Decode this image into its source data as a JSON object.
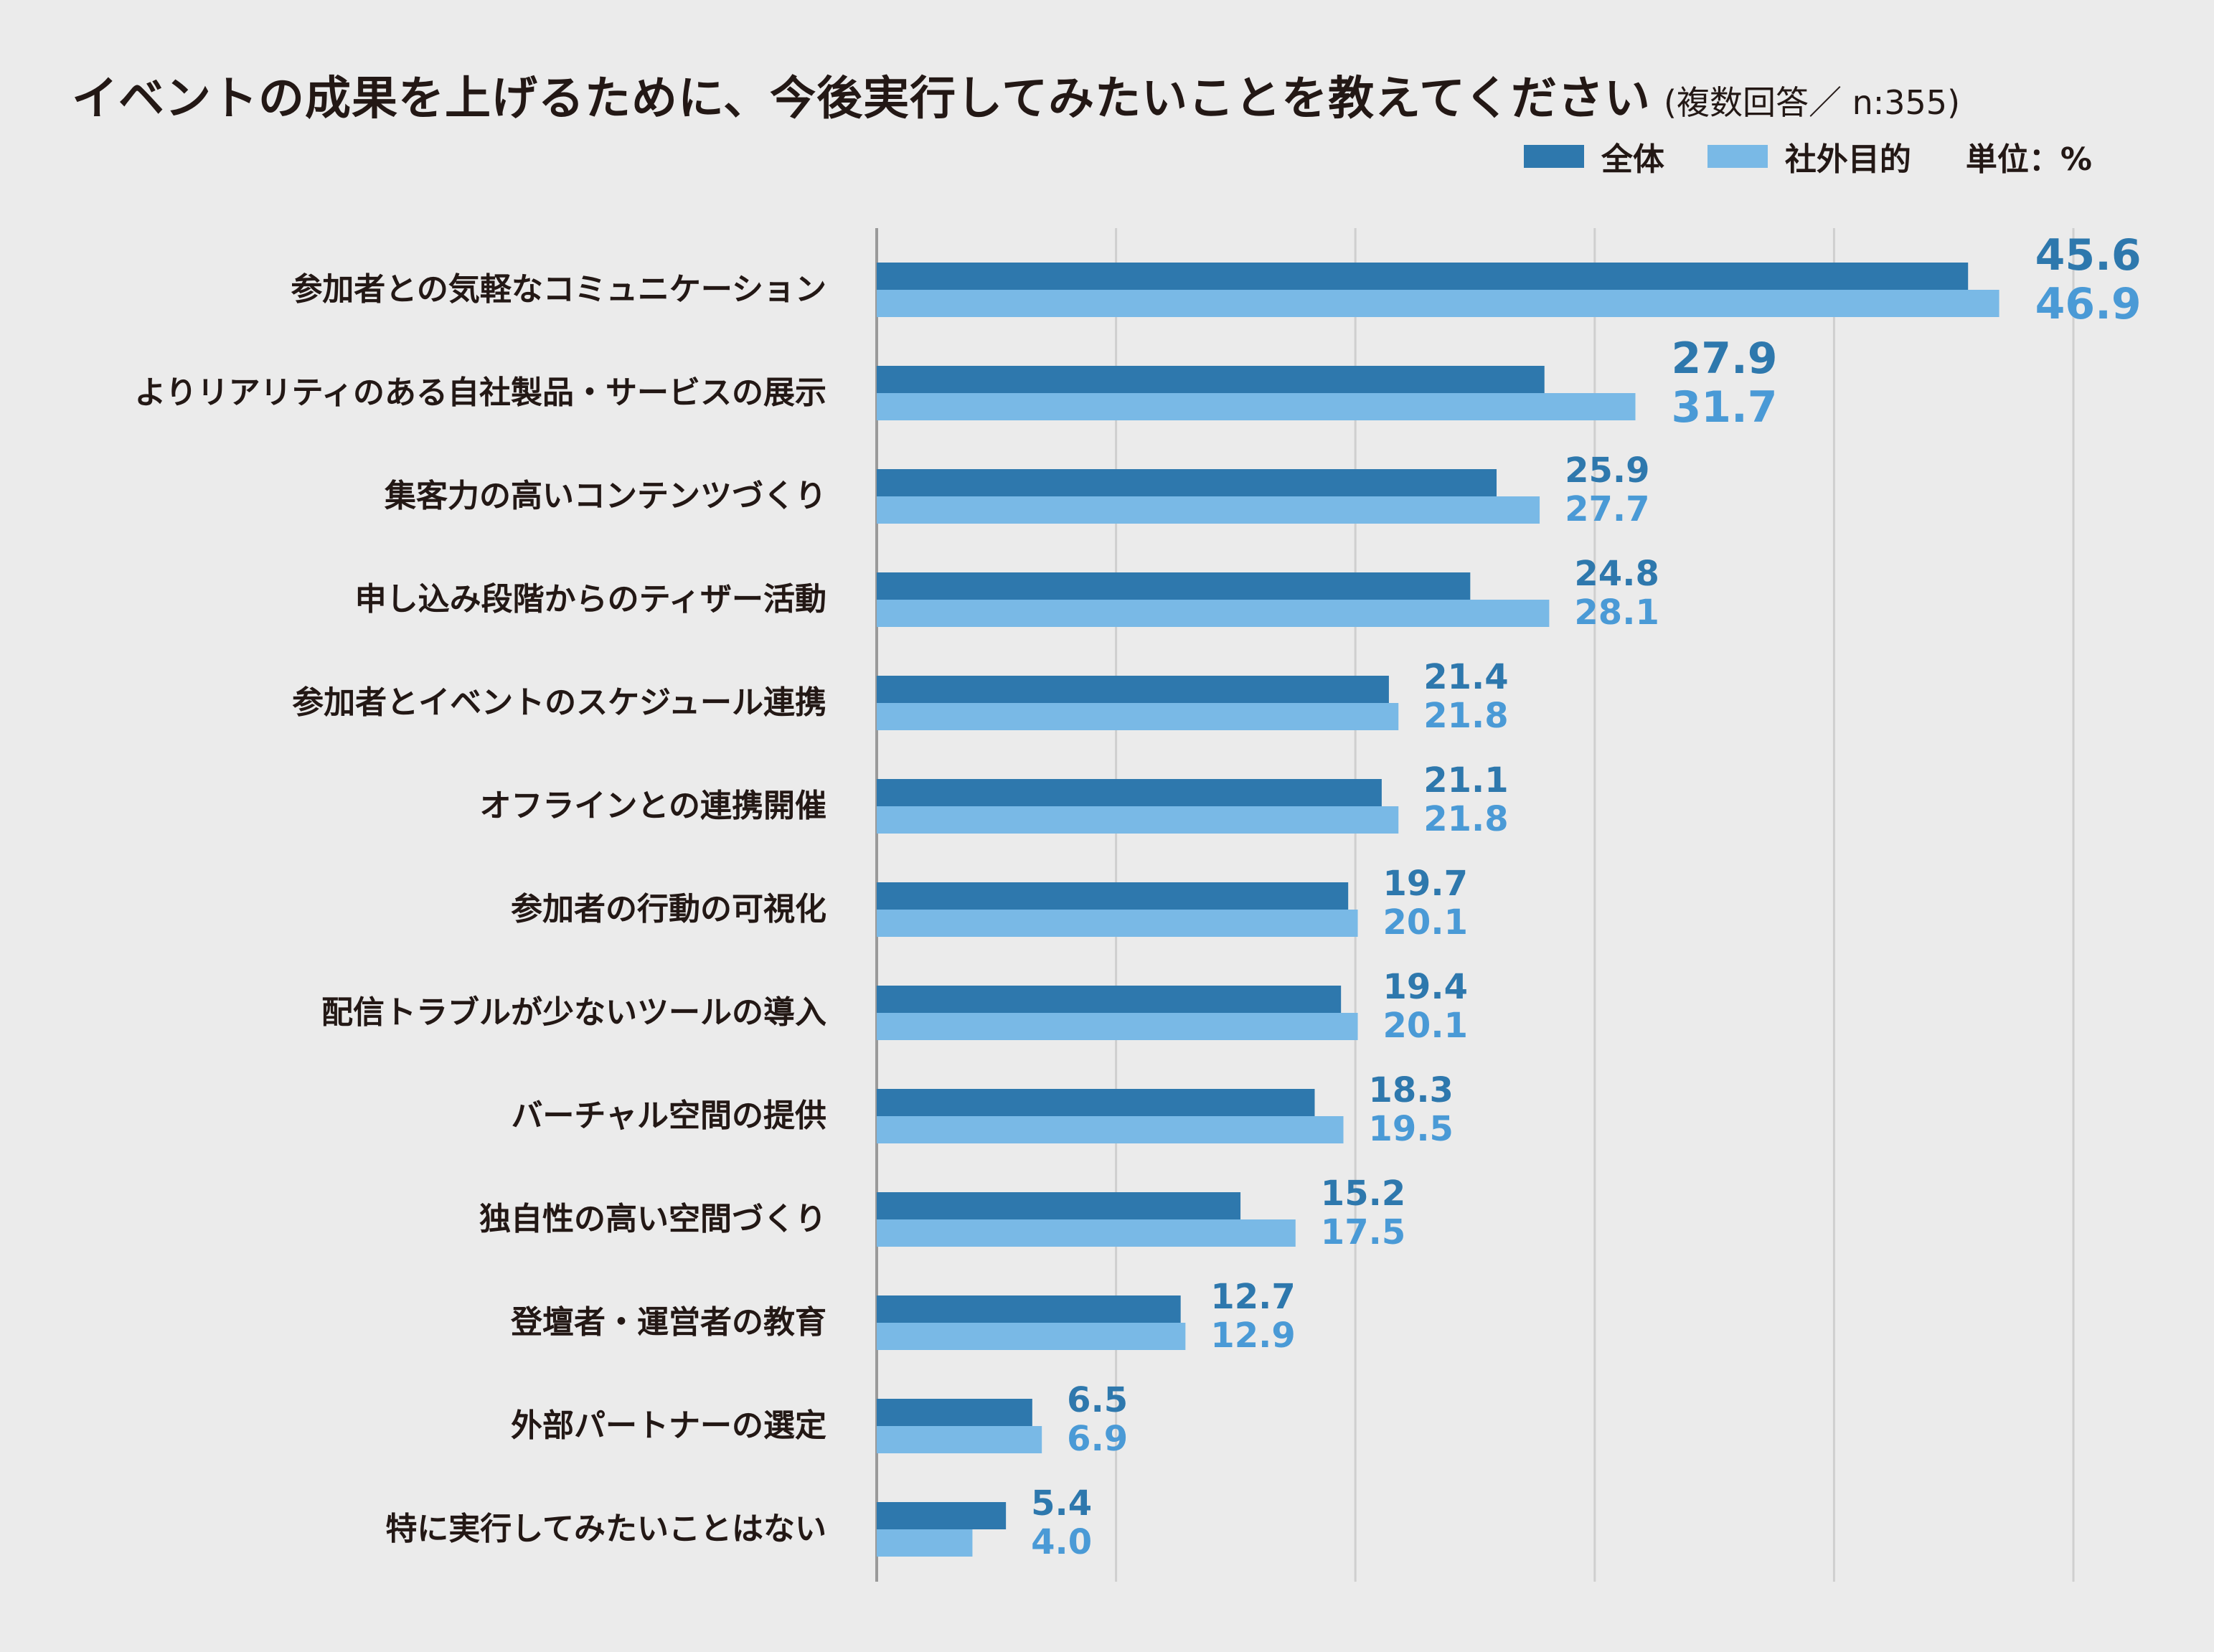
{
  "header": {
    "title": "イベントの成果を上げるために、今後実行してみたいことを教えてください",
    "subtitle": "(複数回答／ n:355)"
  },
  "legend": {
    "items": [
      {
        "label": "全体",
        "color": "#2e78ad"
      },
      {
        "label": "社外目的",
        "color": "#79b9e6"
      }
    ],
    "unit": "単位：%"
  },
  "colors": {
    "series_dark": "#2e78ad",
    "series_light": "#79b9e6",
    "label_dark": "#2e78ad",
    "label_light": "#4a9ad6",
    "grid": "#cfcfcf",
    "axis": "#9a9a9a"
  },
  "chart_data": {
    "type": "bar",
    "orientation": "horizontal",
    "title": "イベントの成果を上げるために、今後実行してみたいことを教えてください",
    "subtitle": "(複数回答／ n:355)",
    "unit": "単位：%",
    "xlim": [
      0,
      50
    ],
    "grid": true,
    "legend_position": "top-right",
    "categories": [
      "参加者との気軽なコミュニケーション",
      "よりリアリティのある自社製品・サービスの展示",
      "集客力の高いコンテンツづくり",
      "申し込み段階からのティザー活動",
      "参加者とイベントのスケジュール連携",
      "オフラインとの連携開催",
      "参加者の行動の可視化",
      "配信トラブルが少ないツールの導入",
      "バーチャル空間の提供",
      "独自性の高い空間づくり",
      "登壇者・運営者の教育",
      "外部パートナーの選定",
      "特に実行してみたいことはない"
    ],
    "series": [
      {
        "name": "全体",
        "values": [
          45.6,
          27.9,
          25.9,
          24.8,
          21.4,
          21.1,
          19.7,
          19.4,
          18.3,
          15.2,
          12.7,
          6.5,
          5.4
        ]
      },
      {
        "name": "社外目的",
        "values": [
          46.9,
          31.7,
          27.7,
          28.1,
          21.8,
          21.8,
          20.1,
          20.1,
          19.5,
          17.5,
          12.9,
          6.9,
          4.0
        ]
      }
    ]
  }
}
